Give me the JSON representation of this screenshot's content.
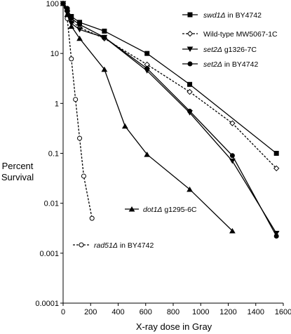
{
  "chart_data": {
    "type": "line",
    "xlabel": "X-ray dose in Gray",
    "ylabel_lines": [
      "Percent",
      "Survival"
    ],
    "xlim": [
      0,
      1600
    ],
    "ylim": [
      0.0001,
      100
    ],
    "yscale": "log",
    "x_ticks": [
      0,
      200,
      400,
      600,
      800,
      1000,
      1200,
      1400,
      1600
    ],
    "x_tick_labels": [
      "0",
      "200",
      "400",
      "600",
      "800",
      "1000",
      "1200",
      "1400",
      "1600"
    ],
    "y_ticks": [
      100,
      10,
      1,
      0.1,
      0.01,
      0.001,
      0.0001
    ],
    "y_tick_labels": [
      "100",
      "10",
      "1",
      "0.1",
      "0.01",
      "0.001",
      "0.0001"
    ],
    "grid": false,
    "series": [
      {
        "name_gene": "swd1Δ",
        "name_rest": " in BY4742",
        "marker": "square",
        "filled": true,
        "dashed": false,
        "x": [
          0,
          30,
          60,
          120,
          300,
          610,
          920,
          1550
        ],
        "y": [
          100,
          75,
          55,
          42,
          28,
          10,
          2.4,
          0.1
        ]
      },
      {
        "name_gene": "",
        "name_rest": "Wild-type MW5067-1C",
        "marker": "diamond",
        "filled": false,
        "dashed": true,
        "x": [
          0,
          30,
          60,
          120,
          300,
          610,
          920,
          1230,
          1550
        ],
        "y": [
          100,
          70,
          45,
          33,
          20,
          6,
          1.7,
          0.4,
          0.05
        ]
      },
      {
        "name_gene": "set2Δ",
        "name_rest": " g1326-7C",
        "marker": "triangle-down",
        "filled": true,
        "dashed": false,
        "x": [
          0,
          30,
          60,
          120,
          300,
          610,
          920,
          1230,
          1550
        ],
        "y": [
          100,
          65,
          40,
          30,
          21,
          4.5,
          0.65,
          0.07,
          0.0025
        ]
      },
      {
        "name_gene": "set2Δ",
        "name_rest": " in BY4742",
        "marker": "circle",
        "filled": true,
        "dashed": false,
        "x": [
          0,
          30,
          60,
          120,
          300,
          610,
          920,
          1230,
          1550
        ],
        "y": [
          100,
          80,
          50,
          38,
          21,
          5,
          0.7,
          0.09,
          0.0022
        ]
      },
      {
        "name_gene": "dot1Δ",
        "name_rest": " g1295-6C",
        "marker": "triangle-up",
        "filled": true,
        "dashed": false,
        "x": [
          0,
          30,
          60,
          120,
          300,
          450,
          610,
          920,
          1230
        ],
        "y": [
          100,
          60,
          35,
          20,
          4.8,
          0.35,
          0.095,
          0.019,
          0.0028
        ]
      },
      {
        "name_gene": "rad51Δ",
        "name_rest": " in BY4742",
        "marker": "circle",
        "filled": false,
        "dashed": true,
        "x": [
          0,
          30,
          60,
          90,
          120,
          150,
          210
        ],
        "y": [
          100,
          50,
          7.8,
          1.2,
          0.2,
          0.035,
          0.005
        ]
      }
    ]
  }
}
